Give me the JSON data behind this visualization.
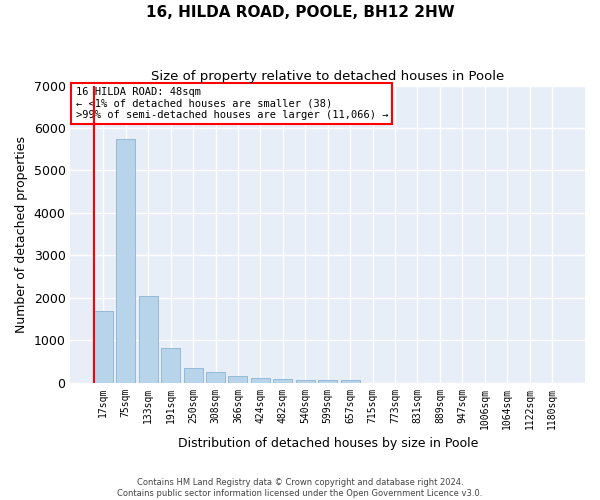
{
  "title": "16, HILDA ROAD, POOLE, BH12 2HW",
  "subtitle": "Size of property relative to detached houses in Poole",
  "xlabel": "Distribution of detached houses by size in Poole",
  "ylabel": "Number of detached properties",
  "bar_color": "#b8d4ea",
  "bar_edge_color": "#8ab4d4",
  "background_color": "#e8eef8",
  "grid_color": "#ffffff",
  "categories": [
    "17sqm",
    "75sqm",
    "133sqm",
    "191sqm",
    "250sqm",
    "308sqm",
    "366sqm",
    "424sqm",
    "482sqm",
    "540sqm",
    "599sqm",
    "657sqm",
    "715sqm",
    "773sqm",
    "831sqm",
    "889sqm",
    "947sqm",
    "1006sqm",
    "1064sqm",
    "1122sqm",
    "1180sqm"
  ],
  "values": [
    1700,
    5750,
    2050,
    810,
    340,
    240,
    155,
    100,
    80,
    65,
    55,
    55,
    0,
    0,
    0,
    0,
    0,
    0,
    0,
    0,
    0
  ],
  "ylim": [
    0,
    7000
  ],
  "yticks": [
    0,
    1000,
    2000,
    3000,
    4000,
    5000,
    6000,
    7000
  ],
  "annotation_text": "16 HILDA ROAD: 48sqm\n← <1% of detached houses are smaller (38)\n>99% of semi-detached houses are larger (11,066) →",
  "footer_line1": "Contains HM Land Registry data © Crown copyright and database right 2024.",
  "footer_line2": "Contains public sector information licensed under the Open Government Licence v3.0."
}
